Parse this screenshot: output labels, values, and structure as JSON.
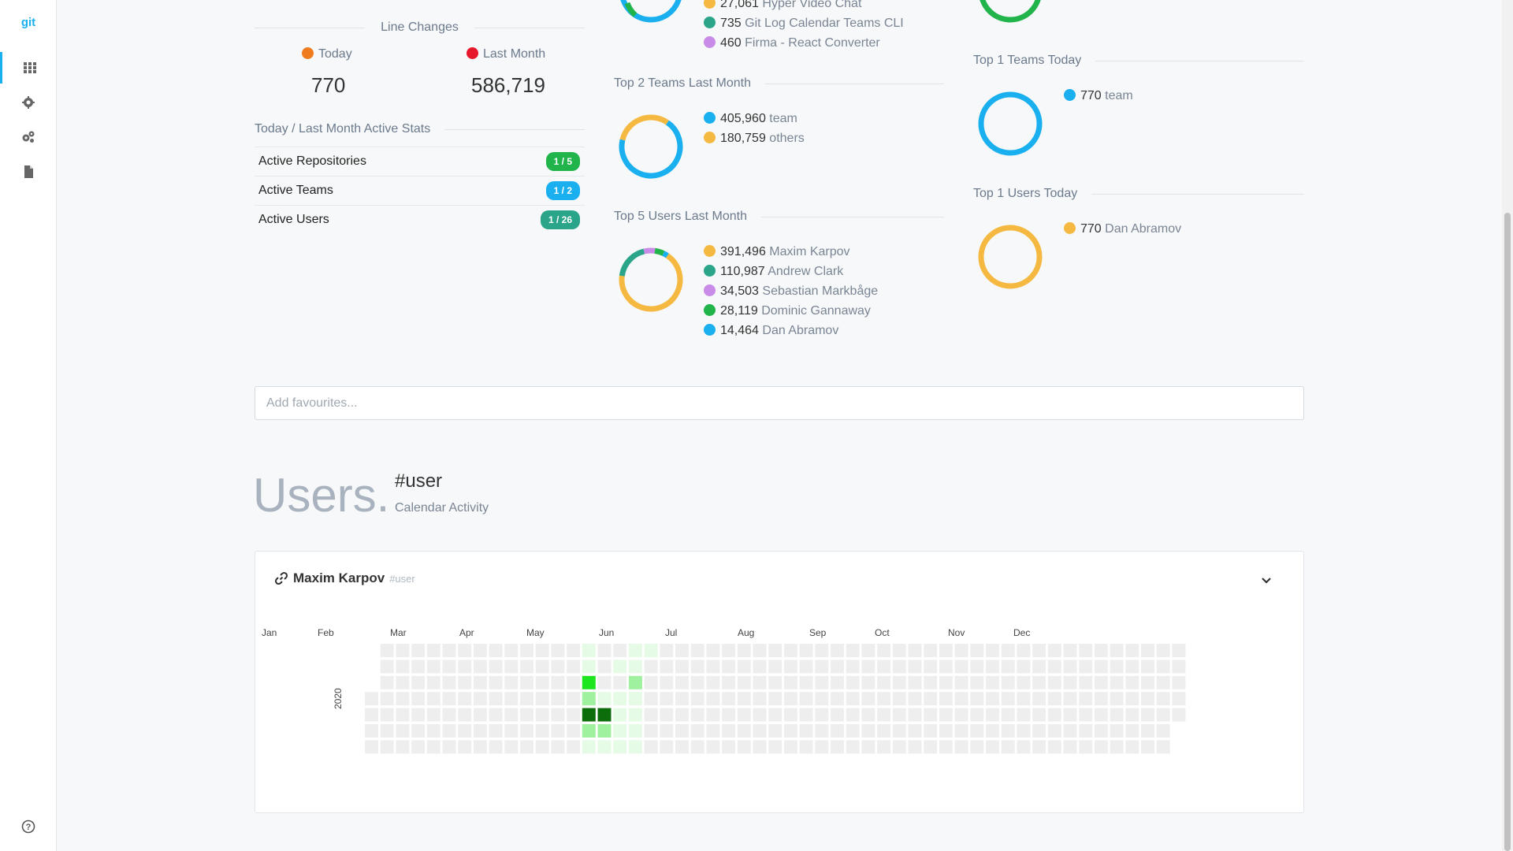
{
  "sidebar": {
    "logo": "git",
    "items": [
      {
        "name": "dashboard-grid-icon",
        "active": true
      },
      {
        "name": "gear-icon",
        "active": false
      },
      {
        "name": "gears-icon",
        "active": false
      },
      {
        "name": "document-icon",
        "active": false
      }
    ],
    "help_icon": "question-circle-icon"
  },
  "line_changes": {
    "title": "Line Changes",
    "today_label": "Today",
    "today_color": "#f07c1e",
    "today_value": "770",
    "last_month_label": "Last Month",
    "last_month_color": "#e8182c",
    "last_month_value": "586,719"
  },
  "active_stats": {
    "title": "Today / Last Month Active Stats",
    "rows": [
      {
        "label": "Active Repositories",
        "badge": "1 / 5",
        "color": "#21b44b"
      },
      {
        "label": "Active Teams",
        "badge": "1 / 2",
        "color": "#1ab0f0"
      },
      {
        "label": "Active Users",
        "badge": "1 / 26",
        "color": "#2aa589"
      }
    ]
  },
  "top_repos": {
    "rows": [
      {
        "value": "27,061",
        "name": "Hyper Video Chat",
        "color": "#f5b942"
      },
      {
        "value": "735",
        "name": "Git Log Calendar Teams CLI",
        "color": "#2aa589"
      },
      {
        "value": "460",
        "name": "Firma - React Converter",
        "color": "#c98be8"
      }
    ]
  },
  "top_teams_last_month": {
    "title": "Top 2 Teams Last Month",
    "rows": [
      {
        "value": "405,960",
        "name": "team",
        "color": "#1ab0f0"
      },
      {
        "value": "180,759",
        "name": "others",
        "color": "#f5b942"
      }
    ],
    "donut": [
      405960,
      180759
    ]
  },
  "top_users_last_month": {
    "title": "Top 5 Users Last Month",
    "rows": [
      {
        "value": "391,496",
        "name": "Maxim Karpov",
        "color": "#f5b942"
      },
      {
        "value": "110,987",
        "name": "Andrew Clark",
        "color": "#2aa589"
      },
      {
        "value": "34,503",
        "name": "Sebastian Markbåge",
        "color": "#c98be8"
      },
      {
        "value": "28,119",
        "name": "Dominic Gannaway",
        "color": "#21b44b"
      },
      {
        "value": "14,464",
        "name": "Dan Abramov",
        "color": "#1ab0f0"
      }
    ],
    "donut": [
      391496,
      110987,
      34503,
      28119,
      14464
    ]
  },
  "top_teams_today": {
    "title": "Top 1 Teams Today",
    "rows": [
      {
        "value": "770",
        "name": "team",
        "color": "#1ab0f0"
      }
    ],
    "donut": [
      770
    ]
  },
  "top_users_today": {
    "title": "Top 1 Users Today",
    "rows": [
      {
        "value": "770",
        "name": "Dan Abramov",
        "color": "#f5b942"
      }
    ],
    "donut": [
      770
    ]
  },
  "favourites": {
    "placeholder": "Add favourites..."
  },
  "users_section": {
    "title": "Users.",
    "tag": "#user",
    "subtitle": "Calendar Activity"
  },
  "calendar_card": {
    "user": "Maxim Karpov",
    "tag": "#user",
    "year": "2020",
    "months": [
      "Jan",
      "Feb",
      "Mar",
      "Apr",
      "May",
      "Jun",
      "Jul",
      "Aug",
      "Sep",
      "Oct",
      "Nov",
      "Dec"
    ],
    "activity": [
      {
        "week": 14,
        "day": 2,
        "level": 3
      },
      {
        "week": 14,
        "day": 3,
        "level": 2
      },
      {
        "week": 14,
        "day": 4,
        "level": 4
      },
      {
        "week": 14,
        "day": 5,
        "level": 2
      },
      {
        "week": 14,
        "day": 0,
        "level": 1
      },
      {
        "week": 14,
        "day": 1,
        "level": 1
      },
      {
        "week": 14,
        "day": 6,
        "level": 1
      },
      {
        "week": 15,
        "day": 4,
        "level": 4
      },
      {
        "week": 15,
        "day": 5,
        "level": 2
      },
      {
        "week": 15,
        "day": 3,
        "level": 1
      },
      {
        "week": 15,
        "day": 6,
        "level": 1
      },
      {
        "week": 16,
        "day": 1,
        "level": 1
      },
      {
        "week": 16,
        "day": 3,
        "level": 1
      },
      {
        "week": 16,
        "day": 4,
        "level": 1
      },
      {
        "week": 16,
        "day": 5,
        "level": 1
      },
      {
        "week": 16,
        "day": 6,
        "level": 1
      },
      {
        "week": 17,
        "day": 0,
        "level": 1
      },
      {
        "week": 17,
        "day": 1,
        "level": 1
      },
      {
        "week": 17,
        "day": 2,
        "level": 2
      },
      {
        "week": 17,
        "day": 3,
        "level": 1
      },
      {
        "week": 17,
        "day": 4,
        "level": 1
      },
      {
        "week": 17,
        "day": 5,
        "level": 1
      },
      {
        "week": 17,
        "day": 6,
        "level": 1
      },
      {
        "week": 18,
        "day": 0,
        "level": 1
      }
    ]
  }
}
